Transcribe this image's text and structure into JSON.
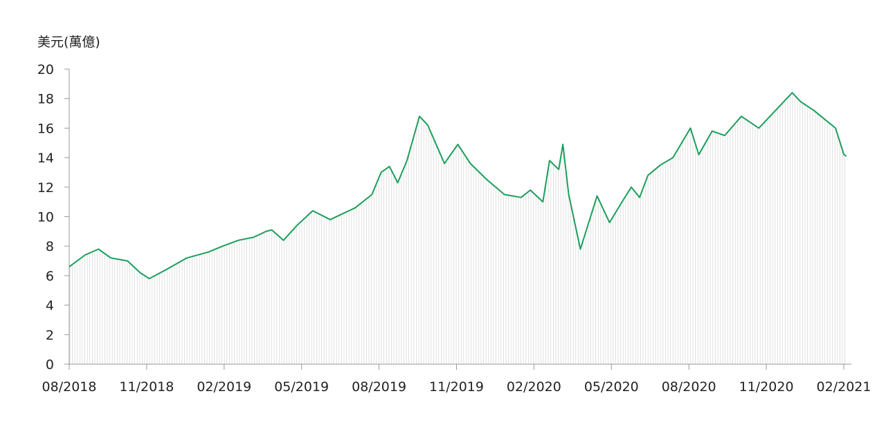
{
  "chart_data": {
    "type": "area",
    "title": "",
    "ylabel": "美元(萬億)",
    "xlabel": "",
    "ylim": [
      0,
      20
    ],
    "yticks": [
      0,
      2,
      4,
      6,
      8,
      10,
      12,
      14,
      16,
      18,
      20
    ],
    "xticks": [
      "08/2018",
      "11/2018",
      "02/2019",
      "05/2019",
      "08/2019",
      "11/2019",
      "02/2020",
      "05/2020",
      "08/2020",
      "11/2020",
      "02/2021"
    ],
    "grid": false,
    "legend": "none",
    "line_color": "#1a9e5c",
    "fill_color": "#d9d9d9",
    "series": [
      {
        "x": [
          "2018-08-01",
          "2018-08-20",
          "2018-09-05",
          "2018-09-20",
          "2018-10-10",
          "2018-10-25",
          "2018-11-05",
          "2018-11-25",
          "2018-12-20",
          "2019-01-15",
          "2019-02-01",
          "2019-02-20",
          "2019-03-10",
          "2019-03-25",
          "2019-04-01",
          "2019-04-15",
          "2019-05-01",
          "2019-05-20",
          "2019-06-10",
          "2019-06-25",
          "2019-07-10",
          "2019-07-30",
          "2019-08-10",
          "2019-08-20",
          "2019-08-30",
          "2019-09-10",
          "2019-09-25",
          "2019-10-05",
          "2019-10-25",
          "2019-11-10",
          "2019-11-25",
          "2019-12-15",
          "2020-01-05",
          "2020-01-25",
          "2020-02-05",
          "2020-02-20",
          "2020-02-28",
          "2020-03-10",
          "2020-03-15",
          "2020-03-22",
          "2020-04-05",
          "2020-04-25",
          "2020-05-10",
          "2020-05-25",
          "2020-06-05",
          "2020-06-15",
          "2020-06-25",
          "2020-07-10",
          "2020-07-25",
          "2020-08-15",
          "2020-08-25",
          "2020-09-10",
          "2020-09-25",
          "2020-10-15",
          "2020-11-05",
          "2020-11-25",
          "2020-12-15",
          "2020-12-25",
          "2021-01-10",
          "2021-01-25",
          "2021-02-05",
          "2021-02-15",
          "2021-02-18"
        ],
        "values": [
          6.6,
          7.4,
          7.8,
          7.2,
          7.0,
          6.2,
          5.8,
          6.4,
          7.2,
          7.6,
          8.0,
          8.4,
          8.6,
          9.0,
          9.1,
          8.4,
          9.4,
          10.4,
          9.8,
          10.2,
          10.6,
          11.5,
          13.0,
          13.4,
          12.3,
          13.8,
          16.8,
          16.2,
          13.6,
          14.9,
          13.6,
          12.5,
          11.5,
          11.3,
          11.8,
          11.0,
          13.8,
          13.2,
          14.9,
          11.5,
          7.8,
          11.4,
          9.6,
          11.0,
          12.0,
          11.3,
          12.8,
          13.5,
          14.0,
          16.0,
          14.2,
          15.8,
          15.5,
          16.8,
          16.0,
          17.2,
          18.4,
          17.8,
          17.2,
          16.5,
          16.0,
          14.2,
          14.1
        ]
      }
    ]
  }
}
